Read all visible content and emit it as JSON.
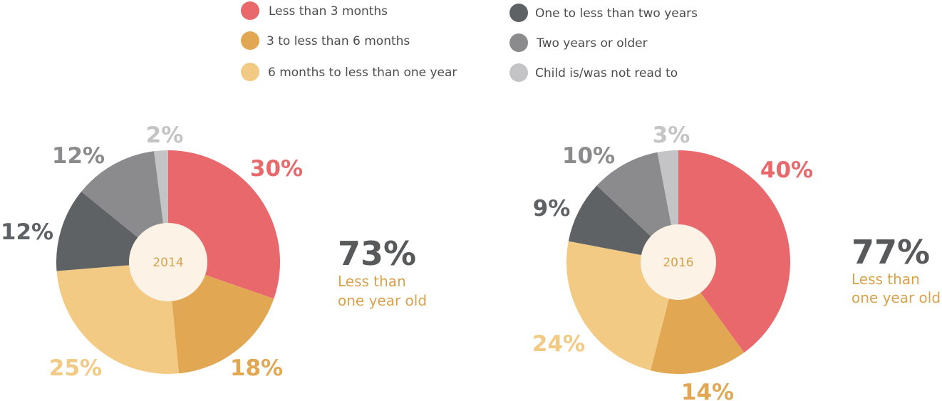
{
  "colors": {
    "less_than_3_months": "#e8686b",
    "3_to_6_months": "#e1a752",
    "6_to_12_months": "#f2ca84",
    "one_to_two_years": "#5f6264",
    "two_years_or_older": "#8b8b8d",
    "not_read_to": "#c4c3c5",
    "center_fill": "#fcf3e6",
    "center_text": "#d9a24a",
    "summary_number": "#58595b",
    "summary_text": "#d9a24a"
  },
  "legend": [
    {
      "label": "Less than 3 months",
      "color": "#e8686b"
    },
    {
      "label": "3 to less than 6 months",
      "color": "#e1a752"
    },
    {
      "label": "6 months to less than one year",
      "color": "#f2ca84"
    },
    {
      "label": "One to less than two years",
      "color": "#5f6264"
    },
    {
      "label": "Two years or older",
      "color": "#8b8b8d"
    },
    {
      "label": "Child is/was not read to",
      "color": "#c4c3c5"
    }
  ],
  "chart_data": [
    {
      "type": "pie",
      "center_label": "2014",
      "categories": [
        "Less than 3 months",
        "3 to less than 6 months",
        "6 months to less than one year",
        "One to less than two years",
        "Two years or older",
        "Child is/was not read to"
      ],
      "values": [
        30,
        18,
        25,
        12,
        12,
        2
      ],
      "value_labels": [
        "30%",
        "18%",
        "25%",
        "12%",
        "12%",
        "2%"
      ],
      "summary": {
        "value": "73%",
        "line1": "Less than",
        "line2": "one year old"
      }
    },
    {
      "type": "pie",
      "center_label": "2016",
      "categories": [
        "Less than 3 months",
        "3 to less than 6 months",
        "6 months to less than one year",
        "One to less than two years",
        "Two years or older",
        "Child is/was not read to"
      ],
      "values": [
        40,
        14,
        24,
        9,
        10,
        3
      ],
      "value_labels": [
        "40%",
        "14%",
        "24%",
        "9%",
        "10%",
        "3%"
      ],
      "summary": {
        "value": "77%",
        "line1": "Less than",
        "line2": "one year old"
      }
    }
  ]
}
